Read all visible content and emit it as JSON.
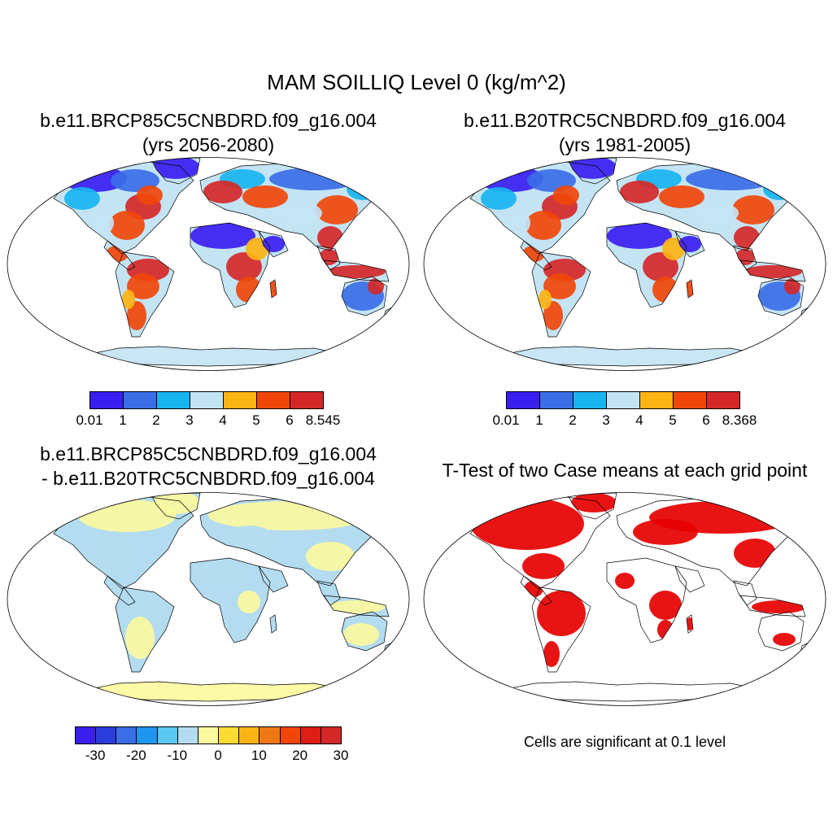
{
  "figure": {
    "title": "MAM SOILLIQ Level 0 (kg/m^2)"
  },
  "panels": [
    {
      "id": "case1",
      "title_line1": "b.e11.BRCP85C5CNBDRD.f09_g16.004",
      "title_line2": "(yrs 2056-2080)",
      "colorbar": {
        "labels": [
          "0.01",
          "1",
          "2",
          "3",
          "4",
          "5",
          "6",
          "8.545"
        ],
        "colors": [
          "#3a1ef0",
          "#3a6ee6",
          "#18b4f0",
          "#c4e4f4",
          "#fcb414",
          "#f0460a",
          "#d42828"
        ]
      }
    },
    {
      "id": "case2",
      "title_line1": "b.e11.B20TRC5CNBDRD.f09_g16.004",
      "title_line2": "(yrs 1981-2005)",
      "colorbar": {
        "labels": [
          "0.01",
          "1",
          "2",
          "3",
          "4",
          "5",
          "6",
          "8.368"
        ],
        "colors": [
          "#3a1ef0",
          "#3a6ee6",
          "#18b4f0",
          "#c4e4f4",
          "#fcb414",
          "#f0460a",
          "#d42828"
        ]
      }
    },
    {
      "id": "diff",
      "title_line1": "b.e11.BRCP85C5CNBDRD.f09_g16.004",
      "title_line2": "- b.e11.B20TRC5CNBDRD.f09_g16.004",
      "colorbar": {
        "labels": [
          "-30",
          "-20",
          "-10",
          "0",
          "10",
          "20",
          "30"
        ],
        "colors": [
          "#3a1ef0",
          "#2a3cdc",
          "#3a6ee6",
          "#1e96f0",
          "#5ac8f0",
          "#b4dcf0",
          "#fcf8a0",
          "#fcdc32",
          "#fcb414",
          "#f07814",
          "#f0460a",
          "#dc1e14",
          "#d42828"
        ]
      }
    },
    {
      "id": "ttest",
      "title_line1": "T-Test of two Case means at each grid point",
      "note": "Cells are significant at 0.1 level"
    }
  ],
  "colors": {
    "ocean": "#ffffff",
    "coast": "#000000",
    "significant": "#e60000"
  }
}
